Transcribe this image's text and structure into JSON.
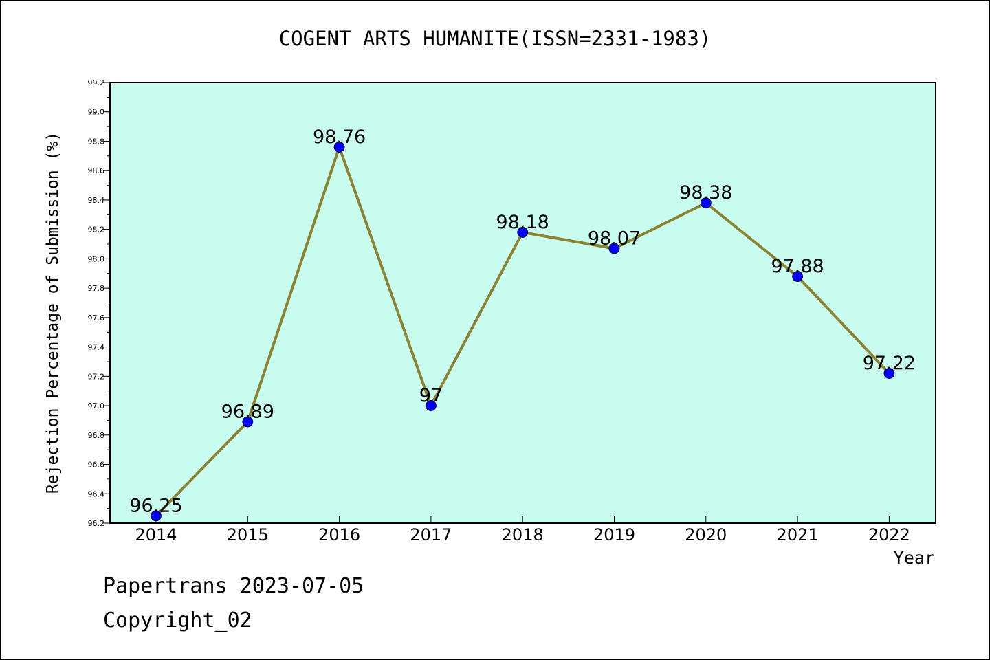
{
  "chart_data": {
    "type": "line",
    "title": "COGENT ARTS HUMANITE(ISSN=2331-1983)",
    "xlabel": "Year",
    "ylabel": "Rejection Percentage of Submission (%)",
    "categories": [
      "2014",
      "2015",
      "2016",
      "2017",
      "2018",
      "2019",
      "2020",
      "2021",
      "2022"
    ],
    "values": [
      96.25,
      96.89,
      98.76,
      97,
      98.18,
      98.07,
      98.38,
      97.88,
      97.22
    ],
    "data_labels": [
      "96.25",
      "96.89",
      "98.76",
      "97",
      "98.18",
      "98.07",
      "98.38",
      "97.88",
      "97.22"
    ],
    "ylim": [
      96.2,
      99.2
    ],
    "yticks": [
      "96.2",
      "96.4",
      "96.6",
      "96.8",
      "97.0",
      "97.2",
      "97.4",
      "97.6",
      "97.8",
      "98.0",
      "98.2",
      "98.4",
      "98.6",
      "98.8",
      "99.0",
      "99.2"
    ],
    "grid": false,
    "colors": {
      "plot_bg": "#c8fcee",
      "line": "#8b8232",
      "marker": "#0000ff"
    }
  },
  "footer": {
    "line1": "Papertrans 2023-07-05",
    "line2": "Copyright_02"
  }
}
